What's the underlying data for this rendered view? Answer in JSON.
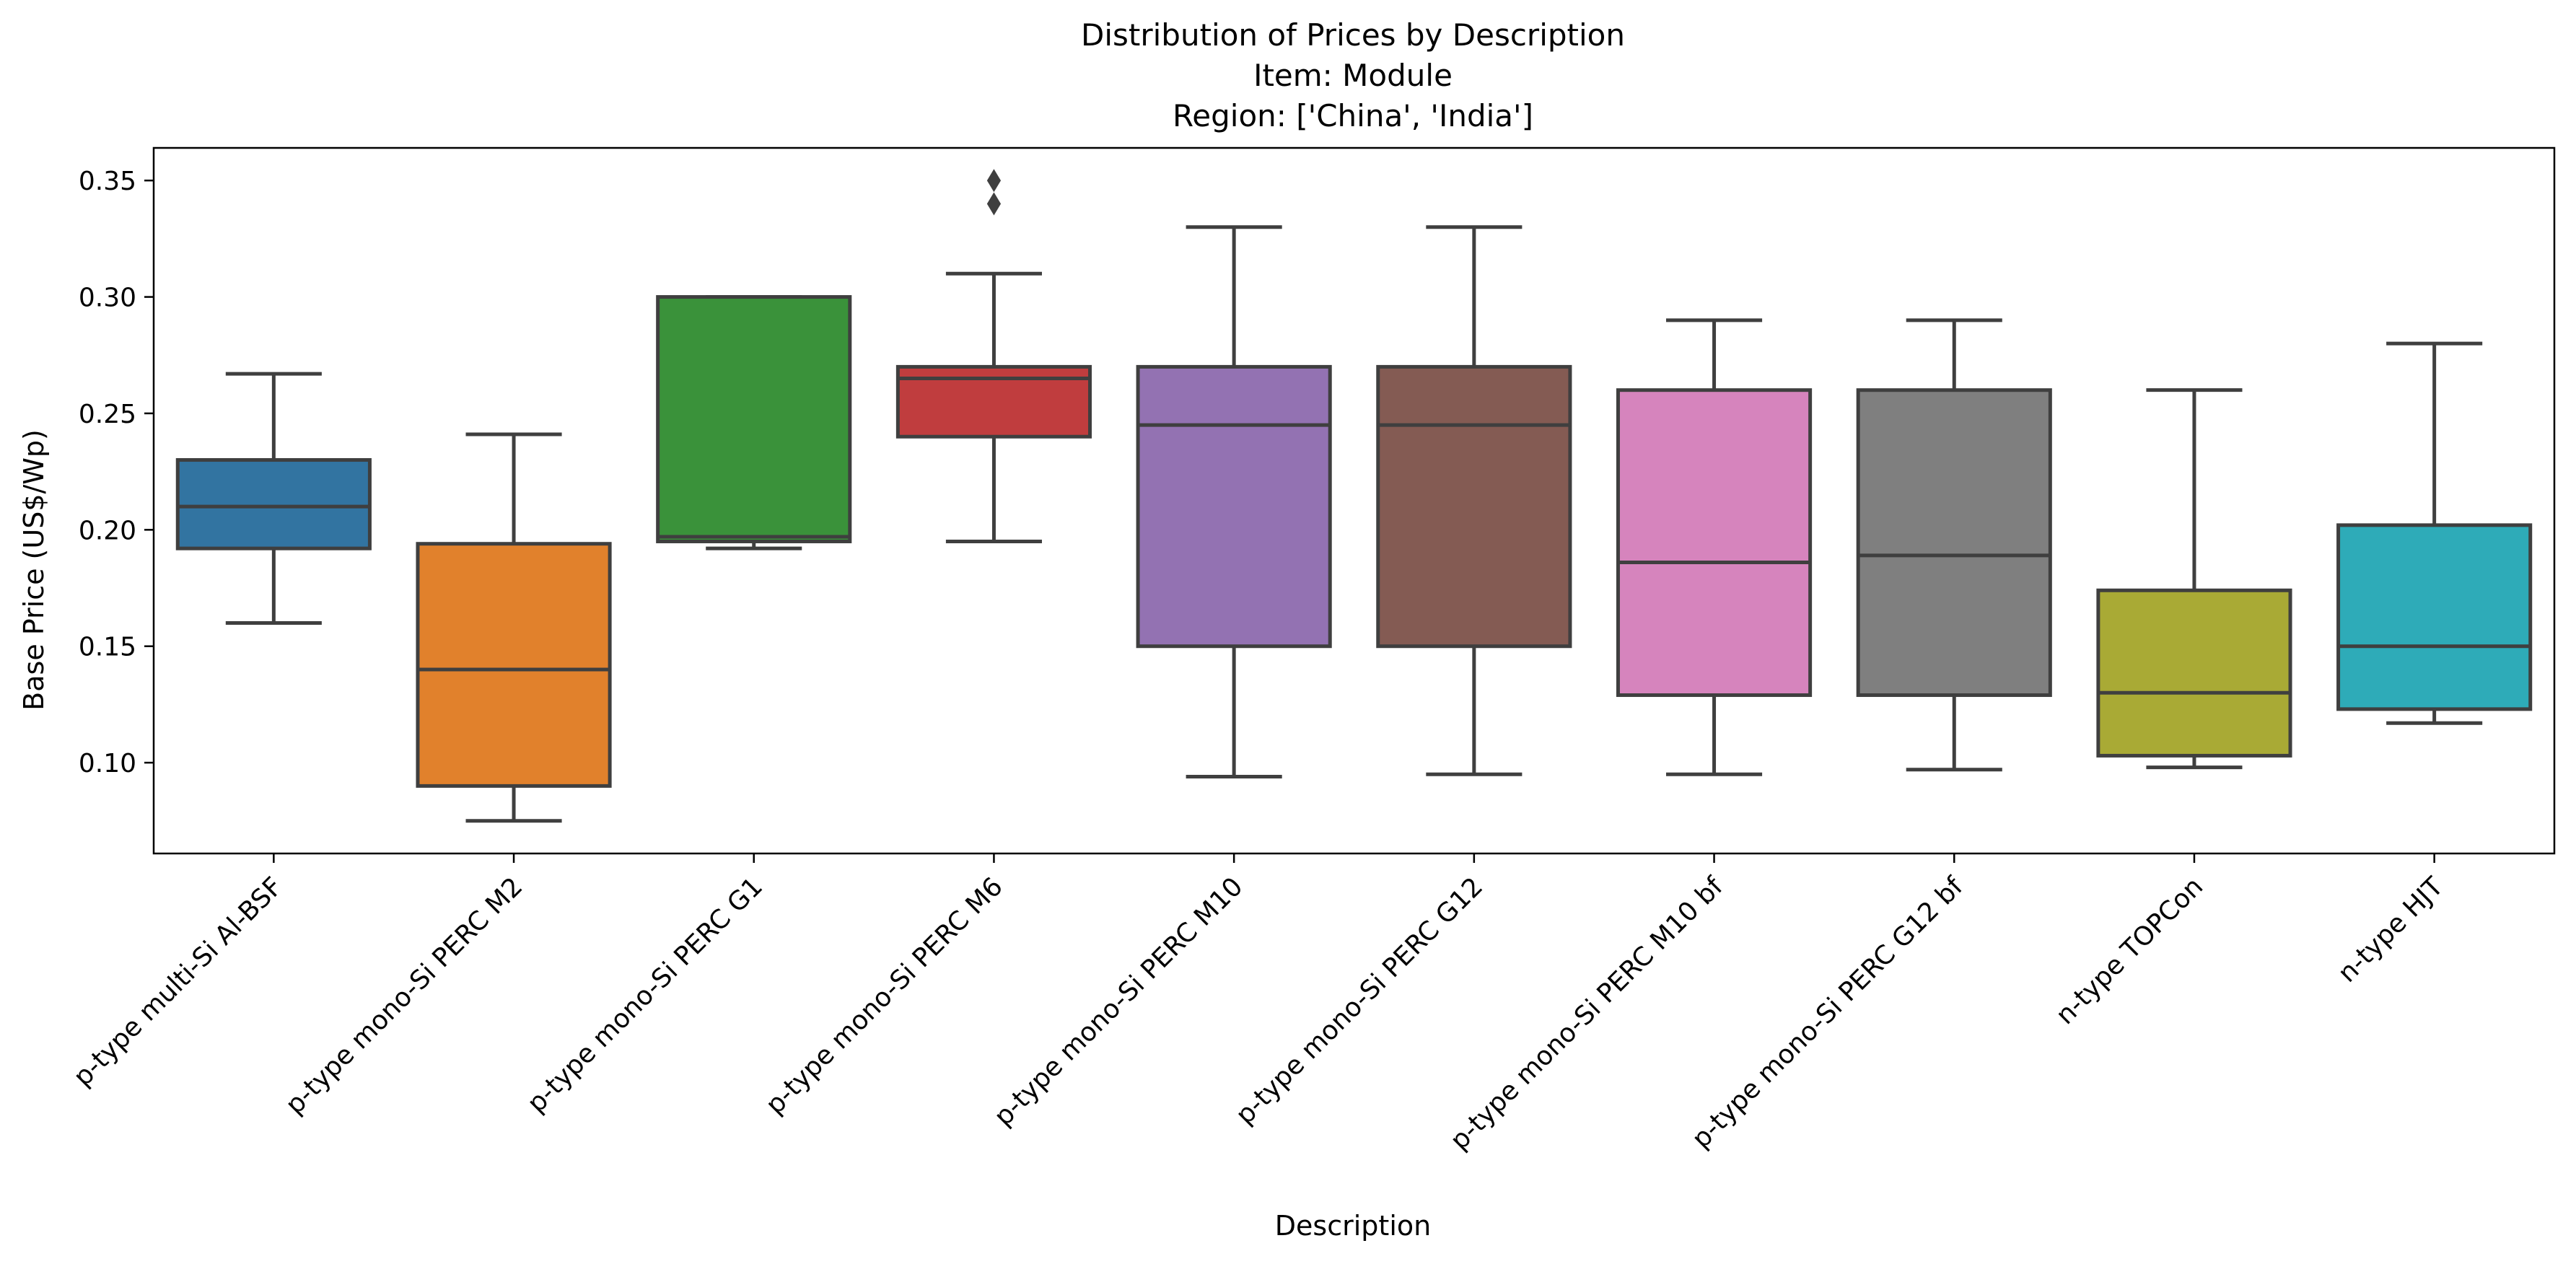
{
  "chart_data": {
    "type": "box",
    "title": [
      "Distribution of Prices by Description",
      "Item: Module",
      "Region: ['China', 'India']"
    ],
    "xlabel": "Description",
    "ylabel": "Base Price (US$/Wp)",
    "ylim": [
      0.061,
      0.364
    ],
    "yticks": [
      0.1,
      0.15,
      0.2,
      0.25,
      0.3,
      0.35
    ],
    "ytick_labels": [
      "0.10",
      "0.15",
      "0.20",
      "0.25",
      "0.30",
      "0.35"
    ],
    "categories": [
      "p-type multi-Si Al-BSF",
      "p-type mono-Si PERC M2",
      "p-type mono-Si PERC G1",
      "p-type mono-Si PERC M6",
      "p-type mono-Si PERC M10",
      "p-type mono-Si PERC G12",
      "p-type mono-Si PERC M10 bf",
      "p-type mono-Si PERC G12 bf",
      "n-type TOPCon",
      "n-type HJT"
    ],
    "boxes": [
      {
        "whislo": 0.16,
        "q1": 0.192,
        "med": 0.21,
        "q3": 0.23,
        "whishi": 0.267,
        "fliers": [],
        "color": "#3274a1"
      },
      {
        "whislo": 0.075,
        "q1": 0.09,
        "med": 0.14,
        "q3": 0.194,
        "whishi": 0.241,
        "fliers": [],
        "color": "#e1812c"
      },
      {
        "whislo": 0.192,
        "q1": 0.195,
        "med": 0.197,
        "q3": 0.3,
        "whishi": 0.3,
        "fliers": [],
        "color": "#3a923a"
      },
      {
        "whislo": 0.195,
        "q1": 0.24,
        "med": 0.265,
        "q3": 0.27,
        "whishi": 0.31,
        "fliers": [
          0.34,
          0.35
        ],
        "color": "#c03d3e"
      },
      {
        "whislo": 0.094,
        "q1": 0.15,
        "med": 0.245,
        "q3": 0.27,
        "whishi": 0.33,
        "fliers": [],
        "color": "#9372b2"
      },
      {
        "whislo": 0.095,
        "q1": 0.15,
        "med": 0.245,
        "q3": 0.27,
        "whishi": 0.33,
        "fliers": [],
        "color": "#845b53"
      },
      {
        "whislo": 0.095,
        "q1": 0.129,
        "med": 0.186,
        "q3": 0.26,
        "whishi": 0.29,
        "fliers": [],
        "color": "#d684bd"
      },
      {
        "whislo": 0.097,
        "q1": 0.129,
        "med": 0.189,
        "q3": 0.26,
        "whishi": 0.29,
        "fliers": [],
        "color": "#7f7f7f"
      },
      {
        "whislo": 0.098,
        "q1": 0.103,
        "med": 0.13,
        "q3": 0.174,
        "whishi": 0.26,
        "fliers": [],
        "color": "#a9aa35"
      },
      {
        "whislo": 0.117,
        "q1": 0.123,
        "med": 0.15,
        "q3": 0.202,
        "whishi": 0.28,
        "fliers": [],
        "color": "#2eabb8"
      }
    ],
    "line_color": "#3f3f3f",
    "grid": false
  }
}
